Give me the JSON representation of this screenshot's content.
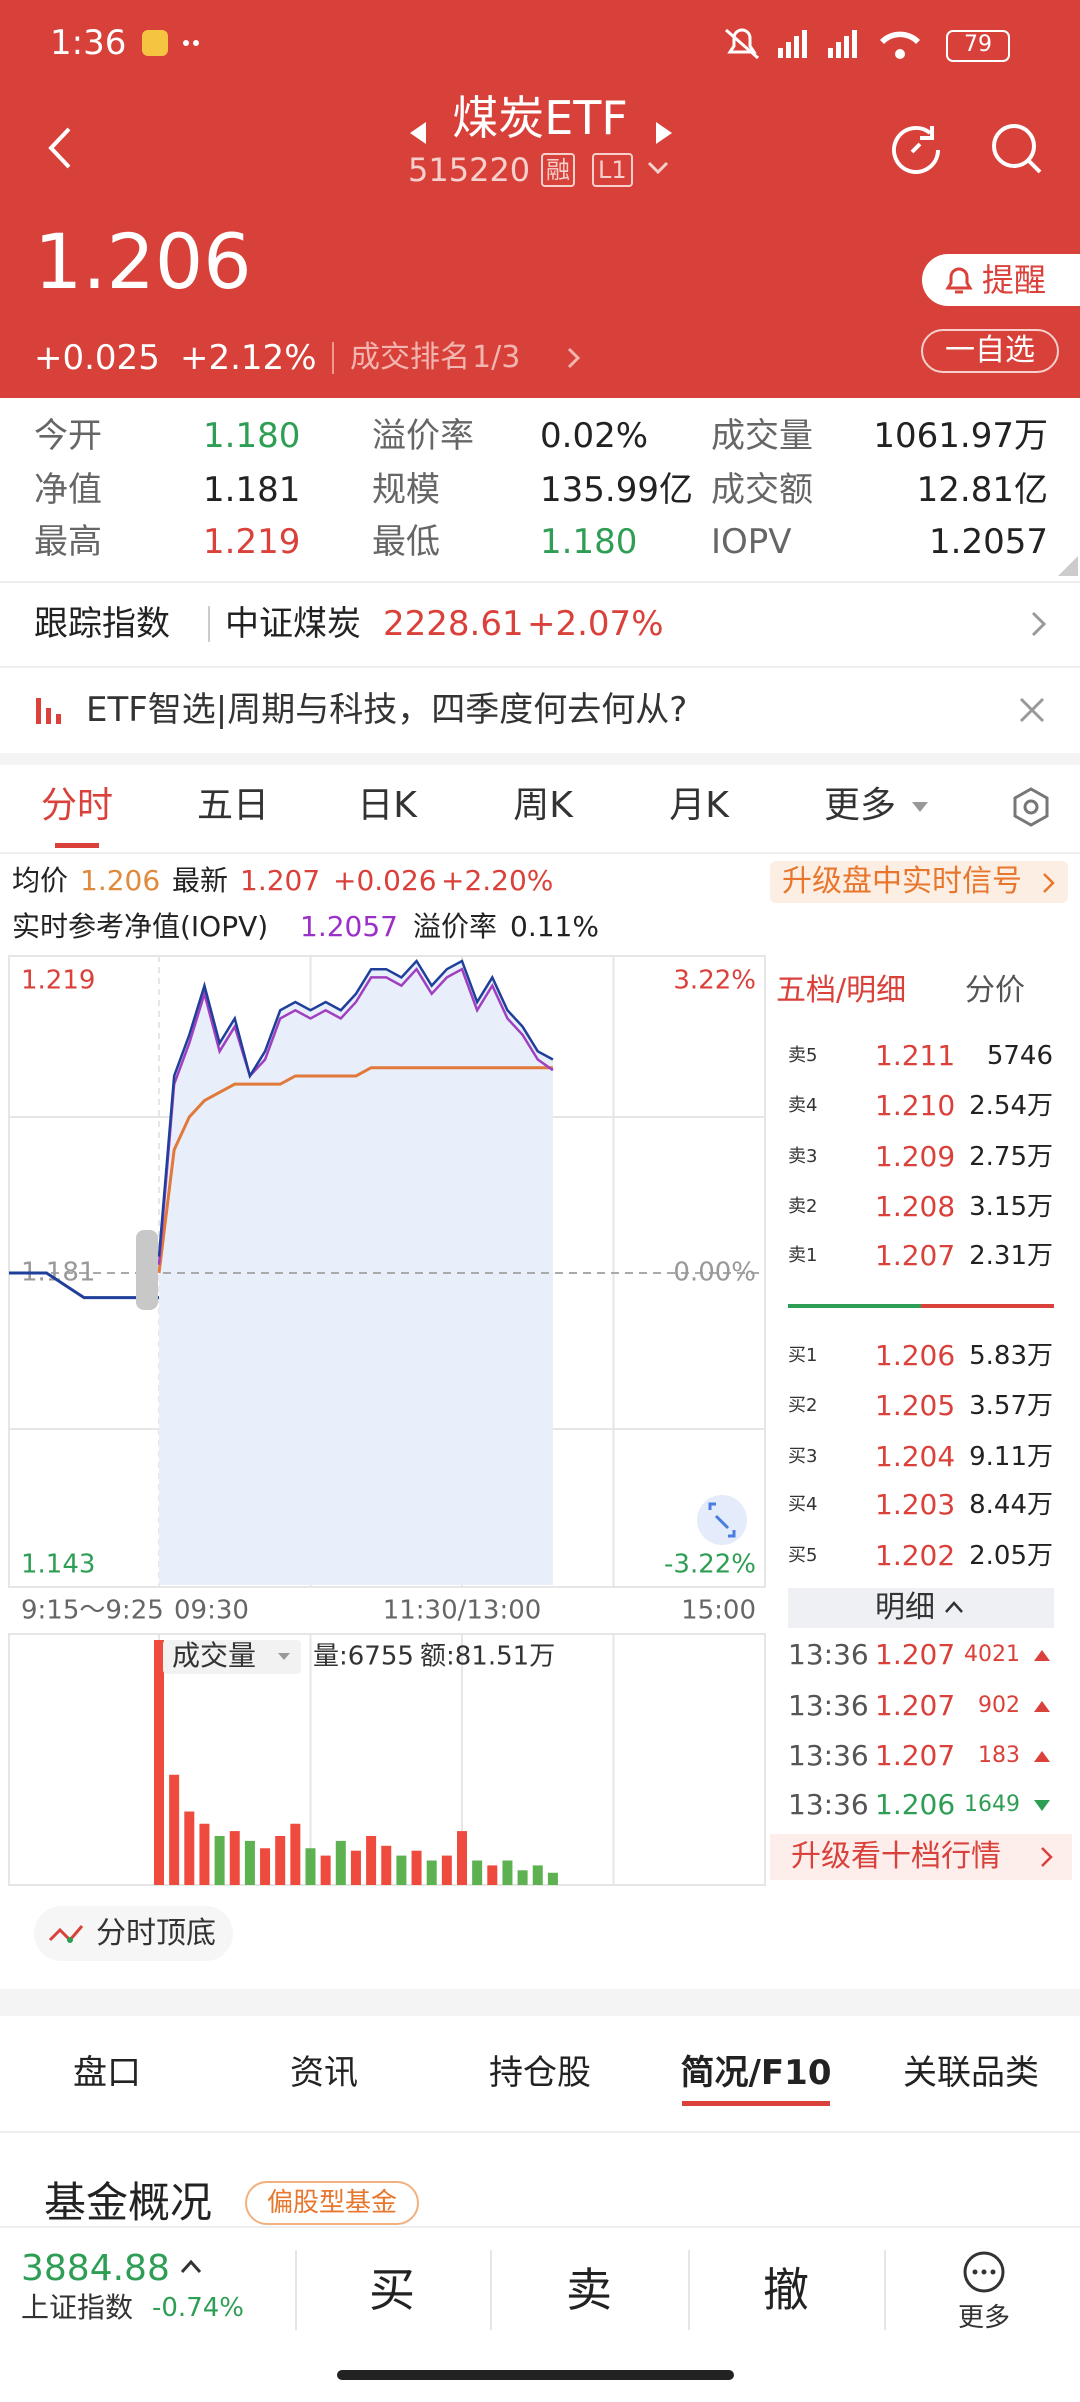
{
  "status_bar": {
    "time": "1:36",
    "battery": "79"
  },
  "header": {
    "title": "煤炭ETF",
    "code": "515220",
    "badges": [
      "融",
      "L1"
    ]
  },
  "quote": {
    "price": "1.206",
    "change": "+0.025",
    "change_pct": "+2.12%",
    "rank_label": "成交排名",
    "rank": "1/3",
    "remind": "提醒",
    "watchlist": "一自选"
  },
  "stats": [
    {
      "label": "今开",
      "value": "1.180",
      "trend": "down"
    },
    {
      "label": "溢价率",
      "value": "0.02%",
      "trend": "flat"
    },
    {
      "label": "成交量",
      "value": "1061.97万",
      "trend": "flat"
    },
    {
      "label": "净值",
      "value": "1.181",
      "trend": "flat"
    },
    {
      "label": "规模",
      "value": "135.99亿",
      "trend": "flat"
    },
    {
      "label": "成交额",
      "value": "12.81亿",
      "trend": "flat"
    },
    {
      "label": "最高",
      "value": "1.219",
      "trend": "up"
    },
    {
      "label": "最低",
      "value": "1.180",
      "trend": "down"
    },
    {
      "label": "IOPV",
      "value": "1.2057",
      "trend": "flat"
    }
  ],
  "tracking": {
    "label": "跟踪指数",
    "name": "中证煤炭",
    "value": "2228.61",
    "change": "+2.07%"
  },
  "news": "ETF智选|周期与科技，四季度何去何从?",
  "tabs": {
    "items": [
      "分时",
      "五日",
      "日K",
      "周K",
      "月K",
      "更多"
    ],
    "active": 0
  },
  "summary": {
    "avg_label": "均价",
    "avg": "1.206",
    "last_label": "最新",
    "last": "1.207",
    "change": "+0.026",
    "change_pct": "+2.20%",
    "iopv_label": "实时参考净值(IOPV)",
    "iopv": "1.2057",
    "premium_label": "溢价率",
    "premium": "0.11%",
    "upgrade": "升级盘中实时信号"
  },
  "chart_data": {
    "type": "line",
    "ylim": [
      1.143,
      1.219
    ],
    "yticks": [
      1.143,
      1.181,
      1.219
    ],
    "y2lim": [
      -3.22,
      3.22
    ],
    "y2ticks": [
      {
        "value": -3.22,
        "label": "-3.22%"
      },
      {
        "value": 0,
        "label": "0.00%"
      },
      {
        "value": 3.22,
        "label": "3.22%"
      }
    ],
    "xtick_labels": [
      "9:15～9:25",
      "09:30",
      "11:30/13:00",
      "15:00"
    ],
    "series": [
      {
        "color": "#1f3f9a",
        "values": [
          1.183,
          1.205,
          1.21,
          1.216,
          1.209,
          1.212,
          1.205,
          1.208,
          1.213,
          1.214,
          1.213,
          1.214,
          1.213,
          1.215,
          1.218,
          1.218,
          1.217,
          1.219,
          1.216,
          1.218,
          1.219,
          1.214,
          1.217,
          1.213,
          1.211,
          1.208,
          1.207
        ]
      },
      {
        "color": "#e0793a",
        "values": [
          1.181,
          1.196,
          1.2,
          1.202,
          1.203,
          1.204,
          1.204,
          1.204,
          1.204,
          1.205,
          1.205,
          1.205,
          1.205,
          1.205,
          1.206,
          1.206,
          1.206,
          1.206,
          1.206,
          1.206,
          1.206,
          1.206,
          1.206,
          1.206,
          1.206,
          1.206,
          1.206
        ]
      },
      {
        "color": "#a040c0",
        "values": [
          1.182,
          1.204,
          1.209,
          1.215,
          1.208,
          1.211,
          1.205,
          1.207,
          1.212,
          1.213,
          1.212,
          1.213,
          1.212,
          1.214,
          1.217,
          1.217,
          1.216,
          1.218,
          1.215,
          1.217,
          1.218,
          1.213,
          1.216,
          1.212,
          1.21,
          1.207,
          1.2057
        ]
      }
    ],
    "pre_market": {
      "color": "#1f3f9a",
      "values": [
        1.181,
        1.181,
        1.178,
        1.178,
        1.178
      ]
    },
    "volume": {
      "label": "成交量",
      "volume": "量:6755",
      "amount": "额:81.51万",
      "ylim": [
        0,
        100
      ],
      "values": [
        100,
        45,
        30,
        25,
        20,
        22,
        18,
        15,
        20,
        25,
        15,
        12,
        18,
        14,
        20,
        16,
        12,
        14,
        10,
        12,
        22,
        10,
        8,
        10,
        6,
        8,
        5
      ]
    }
  },
  "order_book": {
    "title": "五档/明细",
    "tab": "分价",
    "asks": [
      {
        "label": "卖5",
        "price": "1.211",
        "volume": "5746"
      },
      {
        "label": "卖4",
        "price": "1.210",
        "volume": "2.54万"
      },
      {
        "label": "卖3",
        "price": "1.209",
        "volume": "2.75万"
      },
      {
        "label": "卖2",
        "price": "1.208",
        "volume": "3.15万"
      },
      {
        "label": "卖1",
        "price": "1.207",
        "volume": "2.31万"
      }
    ],
    "bids": [
      {
        "label": "买1",
        "price": "1.206",
        "volume": "5.83万"
      },
      {
        "label": "买2",
        "price": "1.205",
        "volume": "3.57万"
      },
      {
        "label": "买3",
        "price": "1.204",
        "volume": "9.11万"
      },
      {
        "label": "买4",
        "price": "1.203",
        "volume": "8.44万"
      },
      {
        "label": "买5",
        "price": "1.202",
        "volume": "2.05万"
      }
    ]
  },
  "trades": {
    "label": "明细",
    "rows": [
      {
        "time": "13:36",
        "price": "1.207",
        "volume": "4021",
        "side": "up"
      },
      {
        "time": "13:36",
        "price": "1.207",
        "volume": "902",
        "side": "up"
      },
      {
        "time": "13:36",
        "price": "1.207",
        "volume": "183",
        "side": "up"
      },
      {
        "time": "13:36",
        "price": "1.206",
        "volume": "1649",
        "side": "down"
      }
    ],
    "upgrade": "升级看十档行情"
  },
  "pattern_button": "分时顶底",
  "bottom_tabs": {
    "items": [
      "盘口",
      "资讯",
      "持仓股",
      "简况/F10",
      "关联品类"
    ],
    "active": 3
  },
  "section": {
    "title": "基金概况",
    "tag": "偏股型基金"
  },
  "footer": {
    "index_value": "3884.88",
    "index_name": "上证指数",
    "index_change": "-0.74%",
    "actions": [
      "买",
      "卖",
      "撤",
      "更多"
    ]
  }
}
